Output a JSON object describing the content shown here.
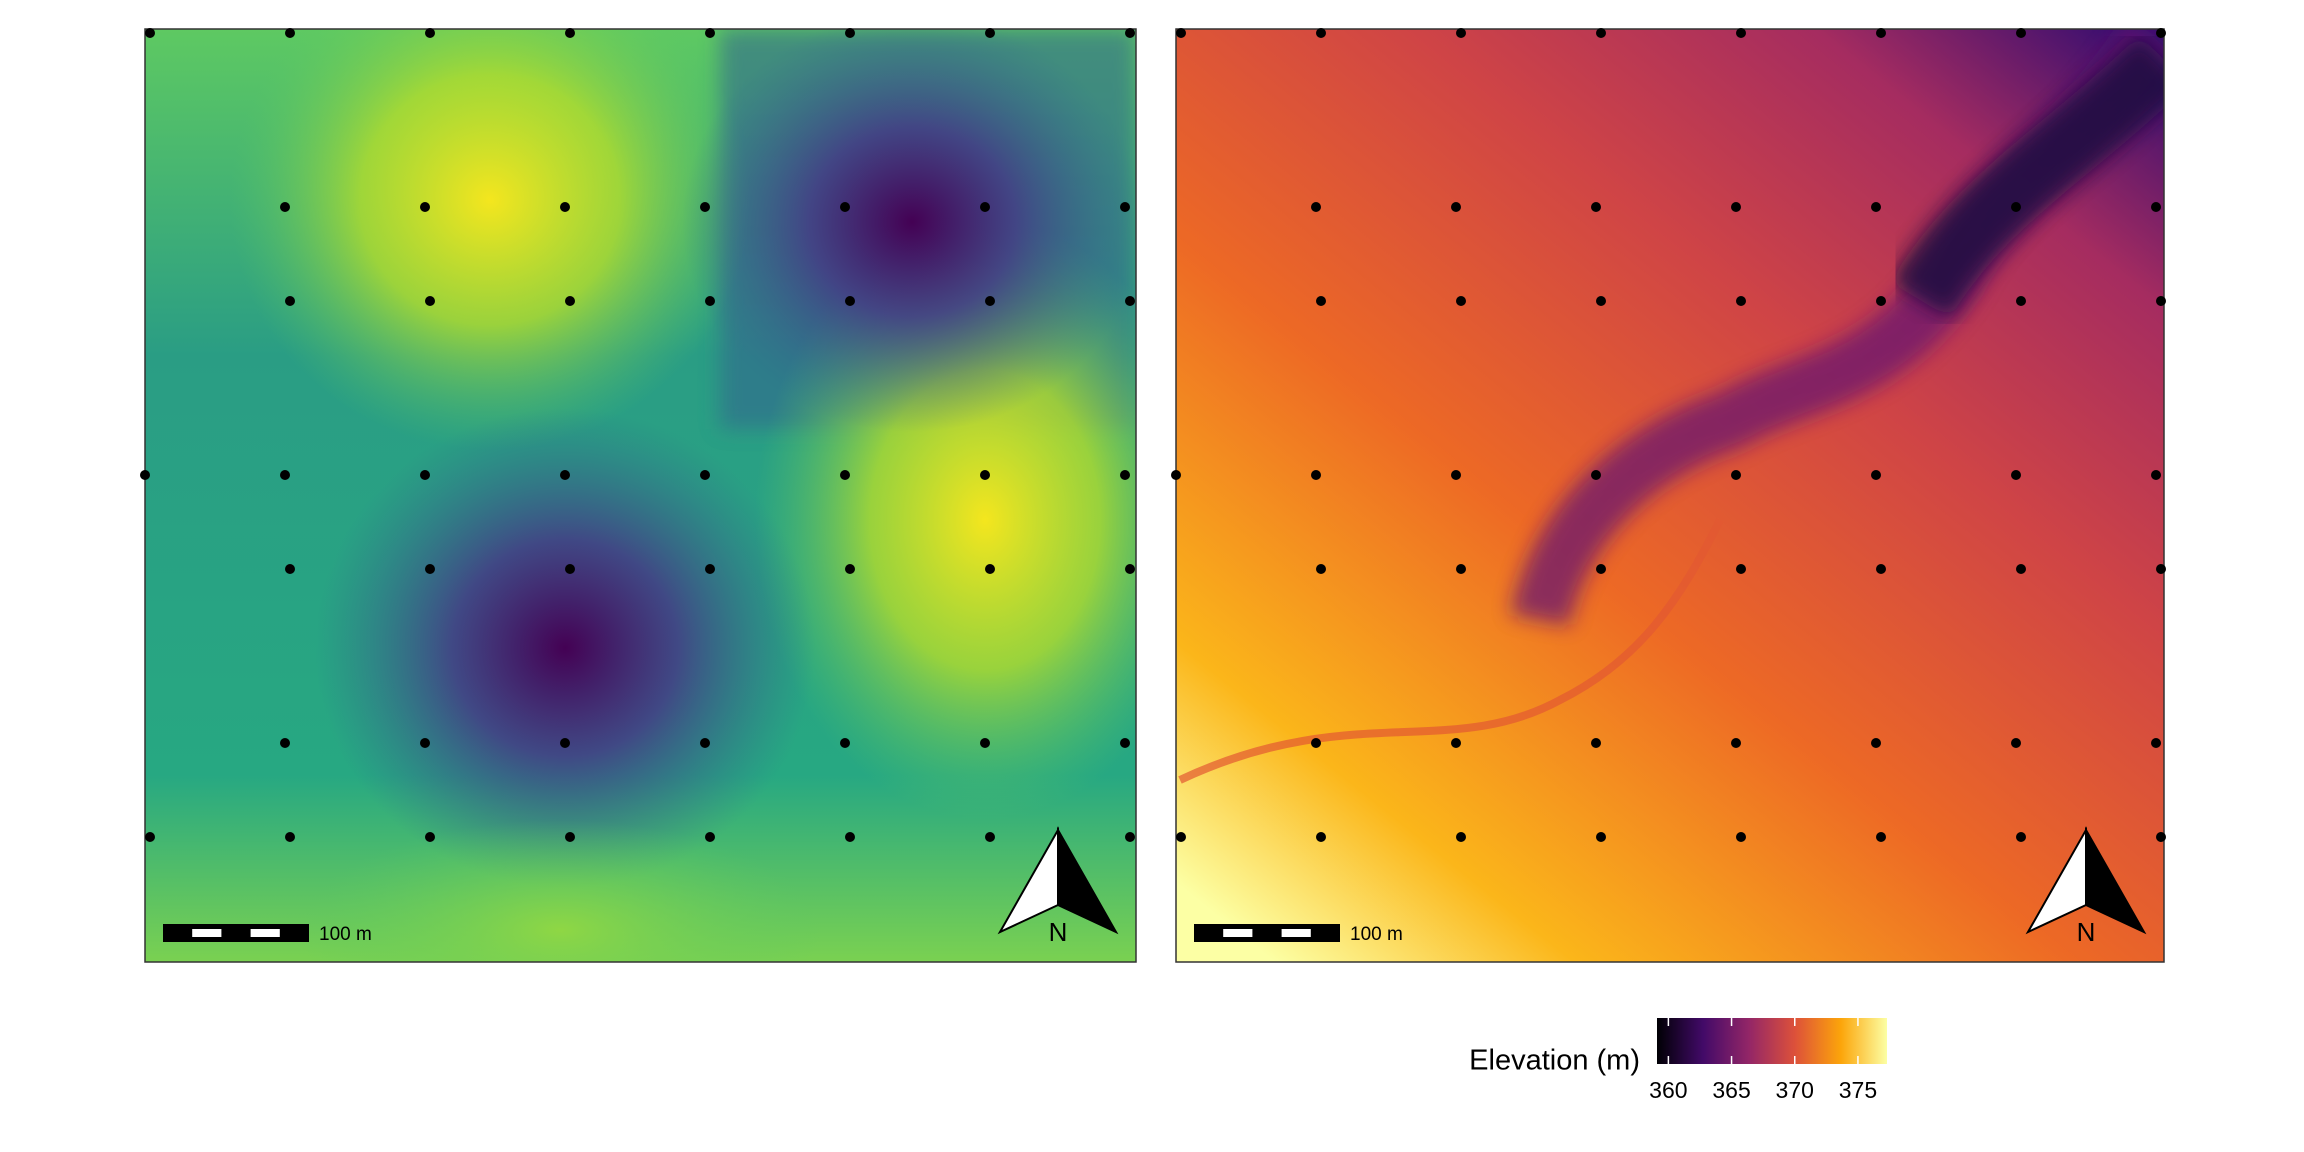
{
  "map": {
    "scale_bar_label": "100 m",
    "north_label": "N"
  },
  "legend": {
    "title": "Elevation (m)",
    "ticks": [
      360,
      365,
      370,
      375
    ],
    "range": [
      359.1,
      377.3
    ]
  }
}
